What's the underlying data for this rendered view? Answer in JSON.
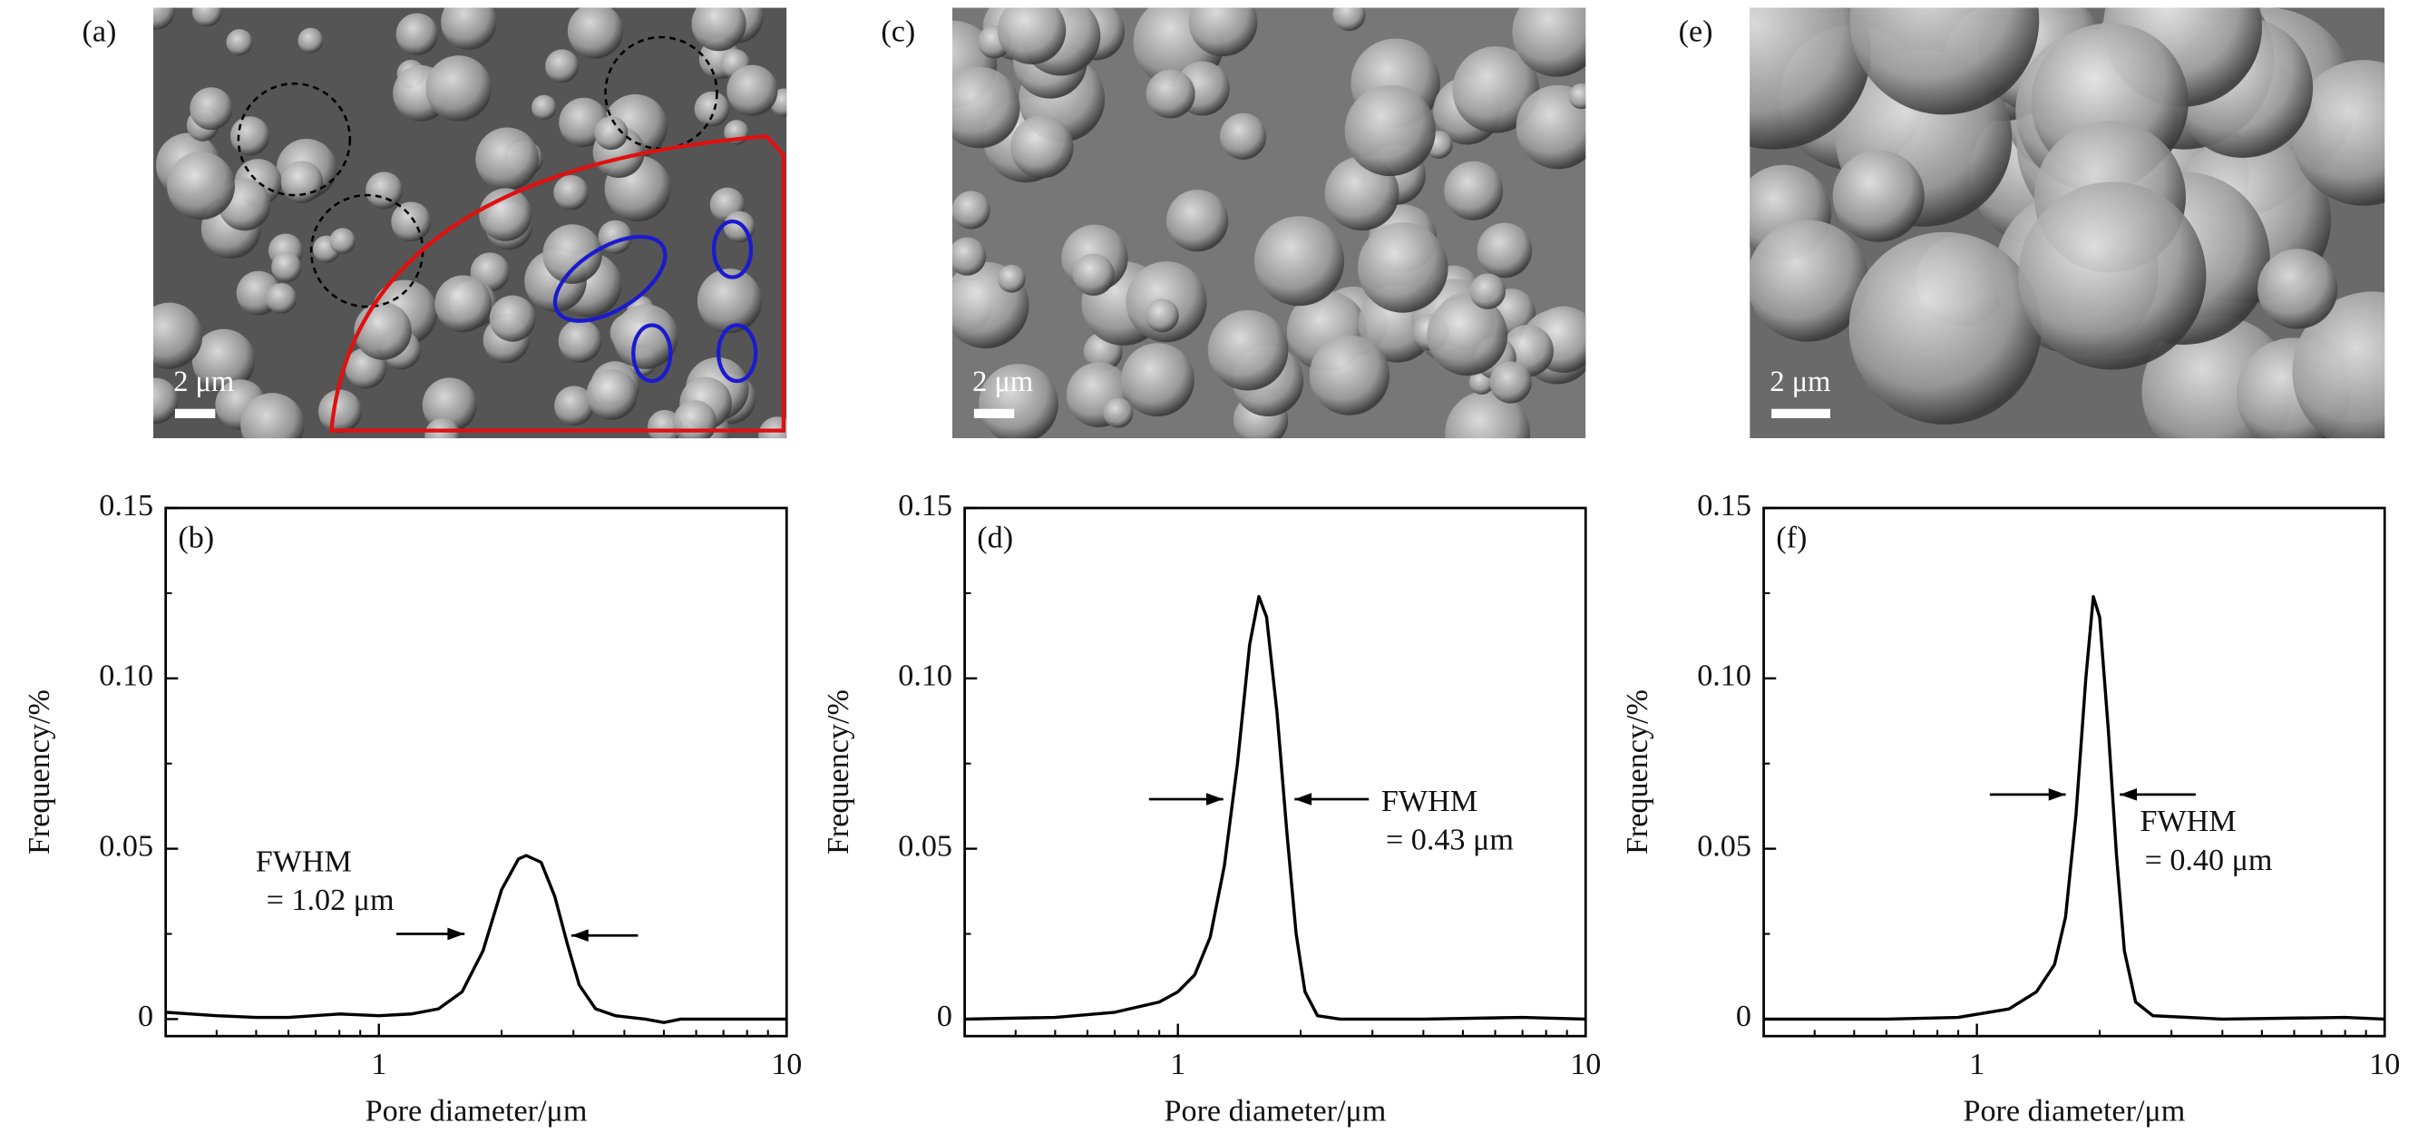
{
  "images": [
    {
      "label": "(a)",
      "scale_bar": "2 μm"
    },
    {
      "label": "(c)",
      "scale_bar": "2 μm"
    },
    {
      "label": "(e)",
      "scale_bar": "2 μm"
    }
  ],
  "chart_data": [
    {
      "type": "line",
      "panel_label": "(b)",
      "xlabel": "Pore diameter/μm",
      "ylabel": "Frequency/%",
      "xscale": "log",
      "xlim": [
        0.3,
        10
      ],
      "xticks": [
        1,
        10
      ],
      "xminorticks": [
        0.4,
        0.5,
        0.6,
        0.7,
        0.8,
        0.9,
        2,
        3,
        4,
        5,
        6,
        7,
        8,
        9
      ],
      "ylim": [
        -0.005,
        0.15
      ],
      "yticks": [
        0,
        0.05,
        {
          "value": 0.1,
          "label": "0.10"
        },
        0.15
      ],
      "yminorticks": [
        0.025,
        0.075,
        0.125
      ],
      "annotations": [
        "FWHM",
        "= 1.02 μm"
      ],
      "series": [
        {
          "color": "#000000",
          "x": [
            0.3,
            0.4,
            0.5,
            0.6,
            0.8,
            1.0,
            1.2,
            1.4,
            1.6,
            1.8,
            2.0,
            2.2,
            2.3,
            2.5,
            2.7,
            2.9,
            3.1,
            3.4,
            3.8,
            4.5,
            5,
            5.5,
            7,
            10
          ],
          "values": [
            0.002,
            0.001,
            0.0005,
            0.0005,
            0.0015,
            0.001,
            0.0015,
            0.003,
            0.008,
            0.02,
            0.038,
            0.047,
            0.048,
            0.046,
            0.036,
            0.022,
            0.01,
            0.003,
            0.001,
            0,
            -0.001,
            0,
            0,
            0
          ]
        }
      ]
    },
    {
      "type": "line",
      "panel_label": "(d)",
      "xlabel": "Pore diameter/μm",
      "ylabel": "Frequency/%",
      "xscale": "log",
      "xlim": [
        0.3,
        10
      ],
      "xticks": [
        1,
        10
      ],
      "xminorticks": [
        0.4,
        0.5,
        0.6,
        0.7,
        0.8,
        0.9,
        2,
        3,
        4,
        5,
        6,
        7,
        8,
        9
      ],
      "ylim": [
        -0.005,
        0.15
      ],
      "yticks": [
        0,
        0.05,
        {
          "value": 0.1,
          "label": "0.10"
        },
        0.15
      ],
      "yminorticks": [
        0.025,
        0.075,
        0.125
      ],
      "annotations": [
        "FWHM",
        "= 0.43 μm"
      ],
      "series": [
        {
          "color": "#000000",
          "x": [
            0.3,
            0.5,
            0.7,
            0.9,
            1.0,
            1.1,
            1.2,
            1.3,
            1.4,
            1.5,
            1.58,
            1.65,
            1.75,
            1.85,
            1.95,
            2.05,
            2.2,
            2.5,
            4,
            7,
            10
          ],
          "values": [
            0,
            0.0005,
            0.002,
            0.005,
            0.008,
            0.013,
            0.024,
            0.045,
            0.075,
            0.11,
            0.124,
            0.118,
            0.09,
            0.055,
            0.025,
            0.008,
            0.001,
            0,
            0,
            0.0005,
            0
          ]
        }
      ]
    },
    {
      "type": "line",
      "panel_label": "(f)",
      "xlabel": "Pore diameter/μm",
      "ylabel": "Frequency/%",
      "xscale": "log",
      "xlim": [
        0.3,
        10
      ],
      "xticks": [
        1,
        10
      ],
      "xminorticks": [
        0.4,
        0.5,
        0.6,
        0.7,
        0.8,
        0.9,
        2,
        3,
        4,
        5,
        6,
        7,
        8,
        9
      ],
      "ylim": [
        -0.005,
        0.15
      ],
      "yticks": [
        0,
        0.05,
        {
          "value": 0.1,
          "label": "0.10"
        },
        0.15
      ],
      "yminorticks": [
        0.025,
        0.075,
        0.125
      ],
      "annotations": [
        "FWHM",
        "= 0.40 μm"
      ],
      "series": [
        {
          "color": "#000000",
          "x": [
            0.3,
            0.6,
            0.9,
            1.2,
            1.4,
            1.55,
            1.65,
            1.75,
            1.85,
            1.93,
            2.0,
            2.1,
            2.2,
            2.3,
            2.45,
            2.7,
            4,
            8,
            10
          ],
          "values": [
            0,
            0,
            0.0005,
            0.003,
            0.008,
            0.016,
            0.03,
            0.06,
            0.1,
            0.124,
            0.118,
            0.085,
            0.048,
            0.02,
            0.005,
            0.001,
            0,
            0.0005,
            0
          ]
        }
      ]
    }
  ]
}
